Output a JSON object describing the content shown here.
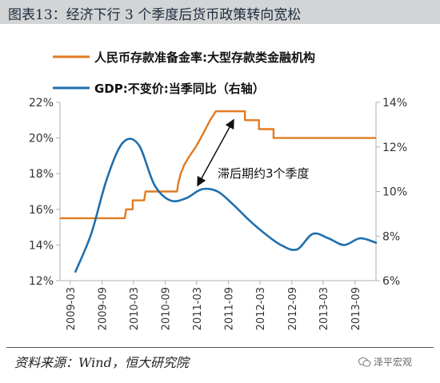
{
  "title": "图表13：经济下行 3 个季度后货币政策转向宽松",
  "source": "资料来源：Wind，恒大研究院",
  "watermark": "泽平宏观",
  "colors": {
    "rrr": "#e07b22",
    "gdp": "#1f6fae",
    "title_bg": "#d2d4d6",
    "axis": "#b0b0b0"
  },
  "chart_data": {
    "type": "line",
    "title": "",
    "grid": false,
    "legend_position": "top-left",
    "annotation": {
      "text": "滞后期约3个季度"
    },
    "x_tick_labels": [
      "2009-03",
      "2009-09",
      "2010-03",
      "2010-09",
      "2011-03",
      "2011-09",
      "2012-03",
      "2012-09",
      "2013-03",
      "2013-09"
    ],
    "y_left": {
      "ticks": [
        "12%",
        "14%",
        "16%",
        "18%",
        "20%",
        "22%"
      ],
      "range": [
        12,
        22
      ]
    },
    "y_right": {
      "ticks": [
        "6%",
        "8%",
        "10%",
        "12%",
        "14%"
      ],
      "range": [
        6,
        14
      ]
    },
    "series": [
      {
        "name": "人民币存款准备金率:大型存款类金融机构",
        "axis": "left",
        "color": "#e07b22",
        "points": [
          [
            "2009-01-01",
            15.5
          ],
          [
            "2010-01-10",
            15.5
          ],
          [
            "2010-01-18",
            16.0
          ],
          [
            "2010-02-25",
            16.0
          ],
          [
            "2010-02-25",
            16.5
          ],
          [
            "2010-05-02",
            16.5
          ],
          [
            "2010-05-10",
            17.0
          ],
          [
            "2010-11-08",
            17.0
          ],
          [
            "2010-11-16",
            17.5
          ],
          [
            "2010-11-29",
            18.0
          ],
          [
            "2010-12-20",
            18.5
          ],
          [
            "2011-01-20",
            19.0
          ],
          [
            "2011-02-24",
            19.5
          ],
          [
            "2011-03-25",
            20.0
          ],
          [
            "2011-04-21",
            20.5
          ],
          [
            "2011-05-18",
            21.0
          ],
          [
            "2011-06-20",
            21.5
          ],
          [
            "2011-12-05",
            21.5
          ],
          [
            "2011-12-05",
            21.0
          ],
          [
            "2012-02-24",
            21.0
          ],
          [
            "2012-02-24",
            20.5
          ],
          [
            "2012-05-18",
            20.5
          ],
          [
            "2012-05-18",
            20.0
          ],
          [
            "2013-12-31",
            20.0
          ]
        ]
      },
      {
        "name": "GDP:不变价:当季同比（右轴）",
        "axis": "right",
        "color": "#1f6fae",
        "points": [
          [
            "2009-03-31",
            6.4
          ],
          [
            "2009-06-30",
            8.1
          ],
          [
            "2009-09-30",
            10.6
          ],
          [
            "2009-12-31",
            12.2
          ],
          [
            "2010-03-31",
            12.1
          ],
          [
            "2010-06-30",
            10.3
          ],
          [
            "2010-09-30",
            9.6
          ],
          [
            "2010-12-31",
            9.7
          ],
          [
            "2011-03-31",
            10.1
          ],
          [
            "2011-06-30",
            10.0
          ],
          [
            "2011-09-30",
            9.4
          ],
          [
            "2011-12-31",
            8.7
          ],
          [
            "2012-03-31",
            8.1
          ],
          [
            "2012-06-30",
            7.6
          ],
          [
            "2012-09-30",
            7.4
          ],
          [
            "2012-12-31",
            8.1
          ],
          [
            "2013-03-31",
            7.9
          ],
          [
            "2013-06-30",
            7.6
          ],
          [
            "2013-09-30",
            7.9
          ],
          [
            "2013-12-31",
            7.7
          ]
        ]
      }
    ]
  }
}
